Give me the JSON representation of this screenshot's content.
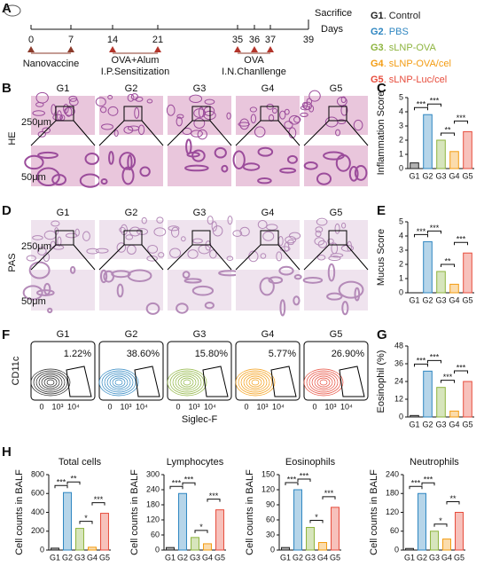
{
  "panel_labels": [
    "A",
    "B",
    "C",
    "D",
    "E",
    "F",
    "G",
    "H"
  ],
  "timeline": {
    "days": [
      0,
      7,
      14,
      21,
      35,
      36,
      37,
      39
    ],
    "axis_label": "Days",
    "sacrifice": "Sacrifice",
    "phases": [
      {
        "label": "Nanovaccine"
      },
      {
        "label": "OVA+Alum",
        "sublabel": "I.P.Sensitization"
      },
      {
        "label": "OVA",
        "sublabel": "I.N.Chanllenge"
      }
    ]
  },
  "groups": [
    {
      "code": "G1",
      "name": ". Control",
      "color": "#222222"
    },
    {
      "code": "G2",
      "name": ". PBS",
      "color": "#2e86c1"
    },
    {
      "code": "G3",
      "name": ". sLNP-OVA",
      "color": "#8db43e"
    },
    {
      "code": "G4",
      "name": ". sLNP-OVA/cel",
      "color": "#f39c12"
    },
    {
      "code": "G5",
      "name": ". sLNP-Luc/cel",
      "color": "#e74c3c"
    }
  ],
  "histology": [
    {
      "stain": "HE",
      "columns": [
        "G1",
        "G2",
        "G3",
        "G4",
        "G5"
      ],
      "scale_bars": [
        "250μm",
        "50μm"
      ]
    },
    {
      "stain": "PAS",
      "columns": [
        "G1",
        "G2",
        "G3",
        "G4",
        "G5"
      ],
      "scale_bars": [
        "250μm",
        "50μm"
      ]
    }
  ],
  "flow": {
    "columns": [
      "G1",
      "G2",
      "G3",
      "G4",
      "G5"
    ],
    "percentages": [
      "1.22%",
      "38.60%",
      "15.80%",
      "5.77%",
      "26.90%"
    ],
    "y_label": "CD11c",
    "x_label": "Siglec-F",
    "x_ticks": [
      "0",
      "10³",
      "10⁴"
    ]
  },
  "chart_data": [
    {
      "type": "bar",
      "y_label": "Inflammation Score",
      "categories": [
        "G1",
        "G2",
        "G3",
        "G4",
        "G5"
      ],
      "values": [
        0.4,
        3.8,
        2.0,
        1.2,
        2.6
      ],
      "colors": [
        "#222222",
        "#2e86c1",
        "#8db43e",
        "#f39c12",
        "#e74c3c"
      ],
      "ylim": [
        0,
        5
      ],
      "yticks": [
        0,
        1,
        2,
        3,
        4,
        5
      ],
      "significance": [
        "***",
        "***",
        "**",
        "***"
      ]
    },
    {
      "type": "bar",
      "y_label": "Mucus Score",
      "categories": [
        "G1",
        "G2",
        "G3",
        "G4",
        "G5"
      ],
      "values": [
        0,
        3.6,
        1.5,
        0.6,
        2.8
      ],
      "colors": [
        "#222222",
        "#2e86c1",
        "#8db43e",
        "#f39c12",
        "#e74c3c"
      ],
      "ylim": [
        0,
        5
      ],
      "yticks": [
        0,
        1,
        2,
        3,
        4,
        5
      ],
      "significance": [
        "***",
        "***",
        "**",
        "***"
      ]
    },
    {
      "type": "bar",
      "y_label": "Eosinophil (%)",
      "categories": [
        "G1",
        "G2",
        "G3",
        "G4",
        "G5"
      ],
      "values": [
        1,
        31,
        20,
        4,
        24
      ],
      "colors": [
        "#222222",
        "#2e86c1",
        "#8db43e",
        "#f39c12",
        "#e74c3c"
      ],
      "ylim": [
        0,
        48
      ],
      "yticks": [
        0,
        12,
        24,
        36,
        48
      ],
      "significance": [
        "***",
        "***",
        "***",
        "***"
      ]
    },
    {
      "type": "bar",
      "title": "Total cells",
      "y_label": "Cell counts in BALF",
      "categories": [
        "G1",
        "G2",
        "G3",
        "G4",
        "G5"
      ],
      "values": [
        20,
        610,
        230,
        30,
        390
      ],
      "colors": [
        "#222222",
        "#2e86c1",
        "#8db43e",
        "#f39c12",
        "#e74c3c"
      ],
      "ylim": [
        0,
        800
      ],
      "yticks": [
        0,
        200,
        400,
        600,
        800
      ],
      "significance": [
        "***",
        "**",
        "*",
        "***"
      ]
    },
    {
      "type": "bar",
      "title": "Lymphocytes",
      "y_label": "Cell counts in BALF",
      "categories": [
        "G1",
        "G2",
        "G3",
        "G4",
        "G5"
      ],
      "values": [
        10,
        225,
        50,
        25,
        160
      ],
      "colors": [
        "#222222",
        "#2e86c1",
        "#8db43e",
        "#f39c12",
        "#e74c3c"
      ],
      "ylim": [
        0,
        300
      ],
      "yticks": [
        0,
        60,
        120,
        180,
        240,
        300
      ],
      "significance": [
        "***",
        "***",
        "*",
        "***"
      ]
    },
    {
      "type": "bar",
      "title": "Eosinophils",
      "y_label": "Cell counts in BALF",
      "categories": [
        "G1",
        "G2",
        "G3",
        "G4",
        "G5"
      ],
      "values": [
        5,
        120,
        45,
        15,
        85
      ],
      "colors": [
        "#222222",
        "#2e86c1",
        "#8db43e",
        "#f39c12",
        "#e74c3c"
      ],
      "ylim": [
        0,
        150
      ],
      "yticks": [
        0,
        30,
        60,
        90,
        120,
        150
      ],
      "significance": [
        "***",
        "***",
        "*",
        "***"
      ]
    },
    {
      "type": "bar",
      "title": "Neutrophils",
      "y_label": "Cell counts in BALF",
      "categories": [
        "G1",
        "G2",
        "G3",
        "G4",
        "G5"
      ],
      "values": [
        5,
        180,
        60,
        35,
        120
      ],
      "colors": [
        "#222222",
        "#2e86c1",
        "#8db43e",
        "#f39c12",
        "#e74c3c"
      ],
      "ylim": [
        0,
        240
      ],
      "yticks": [
        0,
        60,
        120,
        180,
        240
      ],
      "significance": [
        "***",
        "***",
        "*",
        "**"
      ]
    }
  ]
}
